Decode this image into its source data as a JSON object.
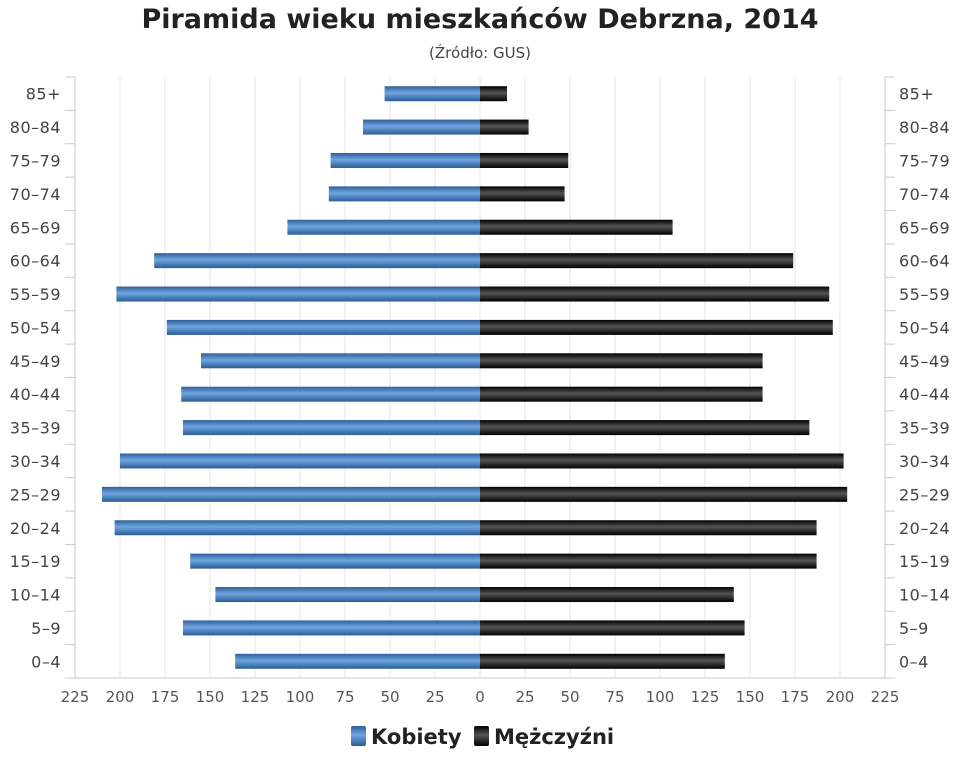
{
  "chart_data": {
    "type": "bar",
    "title": "Piramida wieku mieszkańców Debrzna, 2014",
    "subtitle": "(Źródło: GUS)",
    "categories": [
      "0–4",
      "5–9",
      "10–14",
      "15–19",
      "20–24",
      "25–29",
      "30–34",
      "35–39",
      "40–44",
      "45–49",
      "50–54",
      "55–59",
      "60–64",
      "65–69",
      "70–74",
      "75–79",
      "80–84",
      "85+"
    ],
    "series": [
      {
        "name": "Kobiety",
        "color": "#3d7cc0",
        "values": [
          136,
          165,
          147,
          161,
          203,
          210,
          200,
          165,
          166,
          155,
          174,
          202,
          181,
          107,
          84,
          83,
          65,
          53
        ]
      },
      {
        "name": "Mężczyźni",
        "color": "#1a1a1a",
        "values": [
          136,
          147,
          141,
          187,
          187,
          204,
          202,
          183,
          157,
          157,
          196,
          194,
          174,
          107,
          47,
          49,
          27,
          15
        ]
      }
    ],
    "xlim": [
      -225,
      225
    ],
    "xticks": [
      -225,
      -200,
      -175,
      -150,
      -125,
      -100,
      -75,
      -50,
      -25,
      0,
      25,
      50,
      75,
      100,
      125,
      150,
      175,
      200,
      225
    ],
    "grid": true,
    "legend": "bottom-center"
  }
}
